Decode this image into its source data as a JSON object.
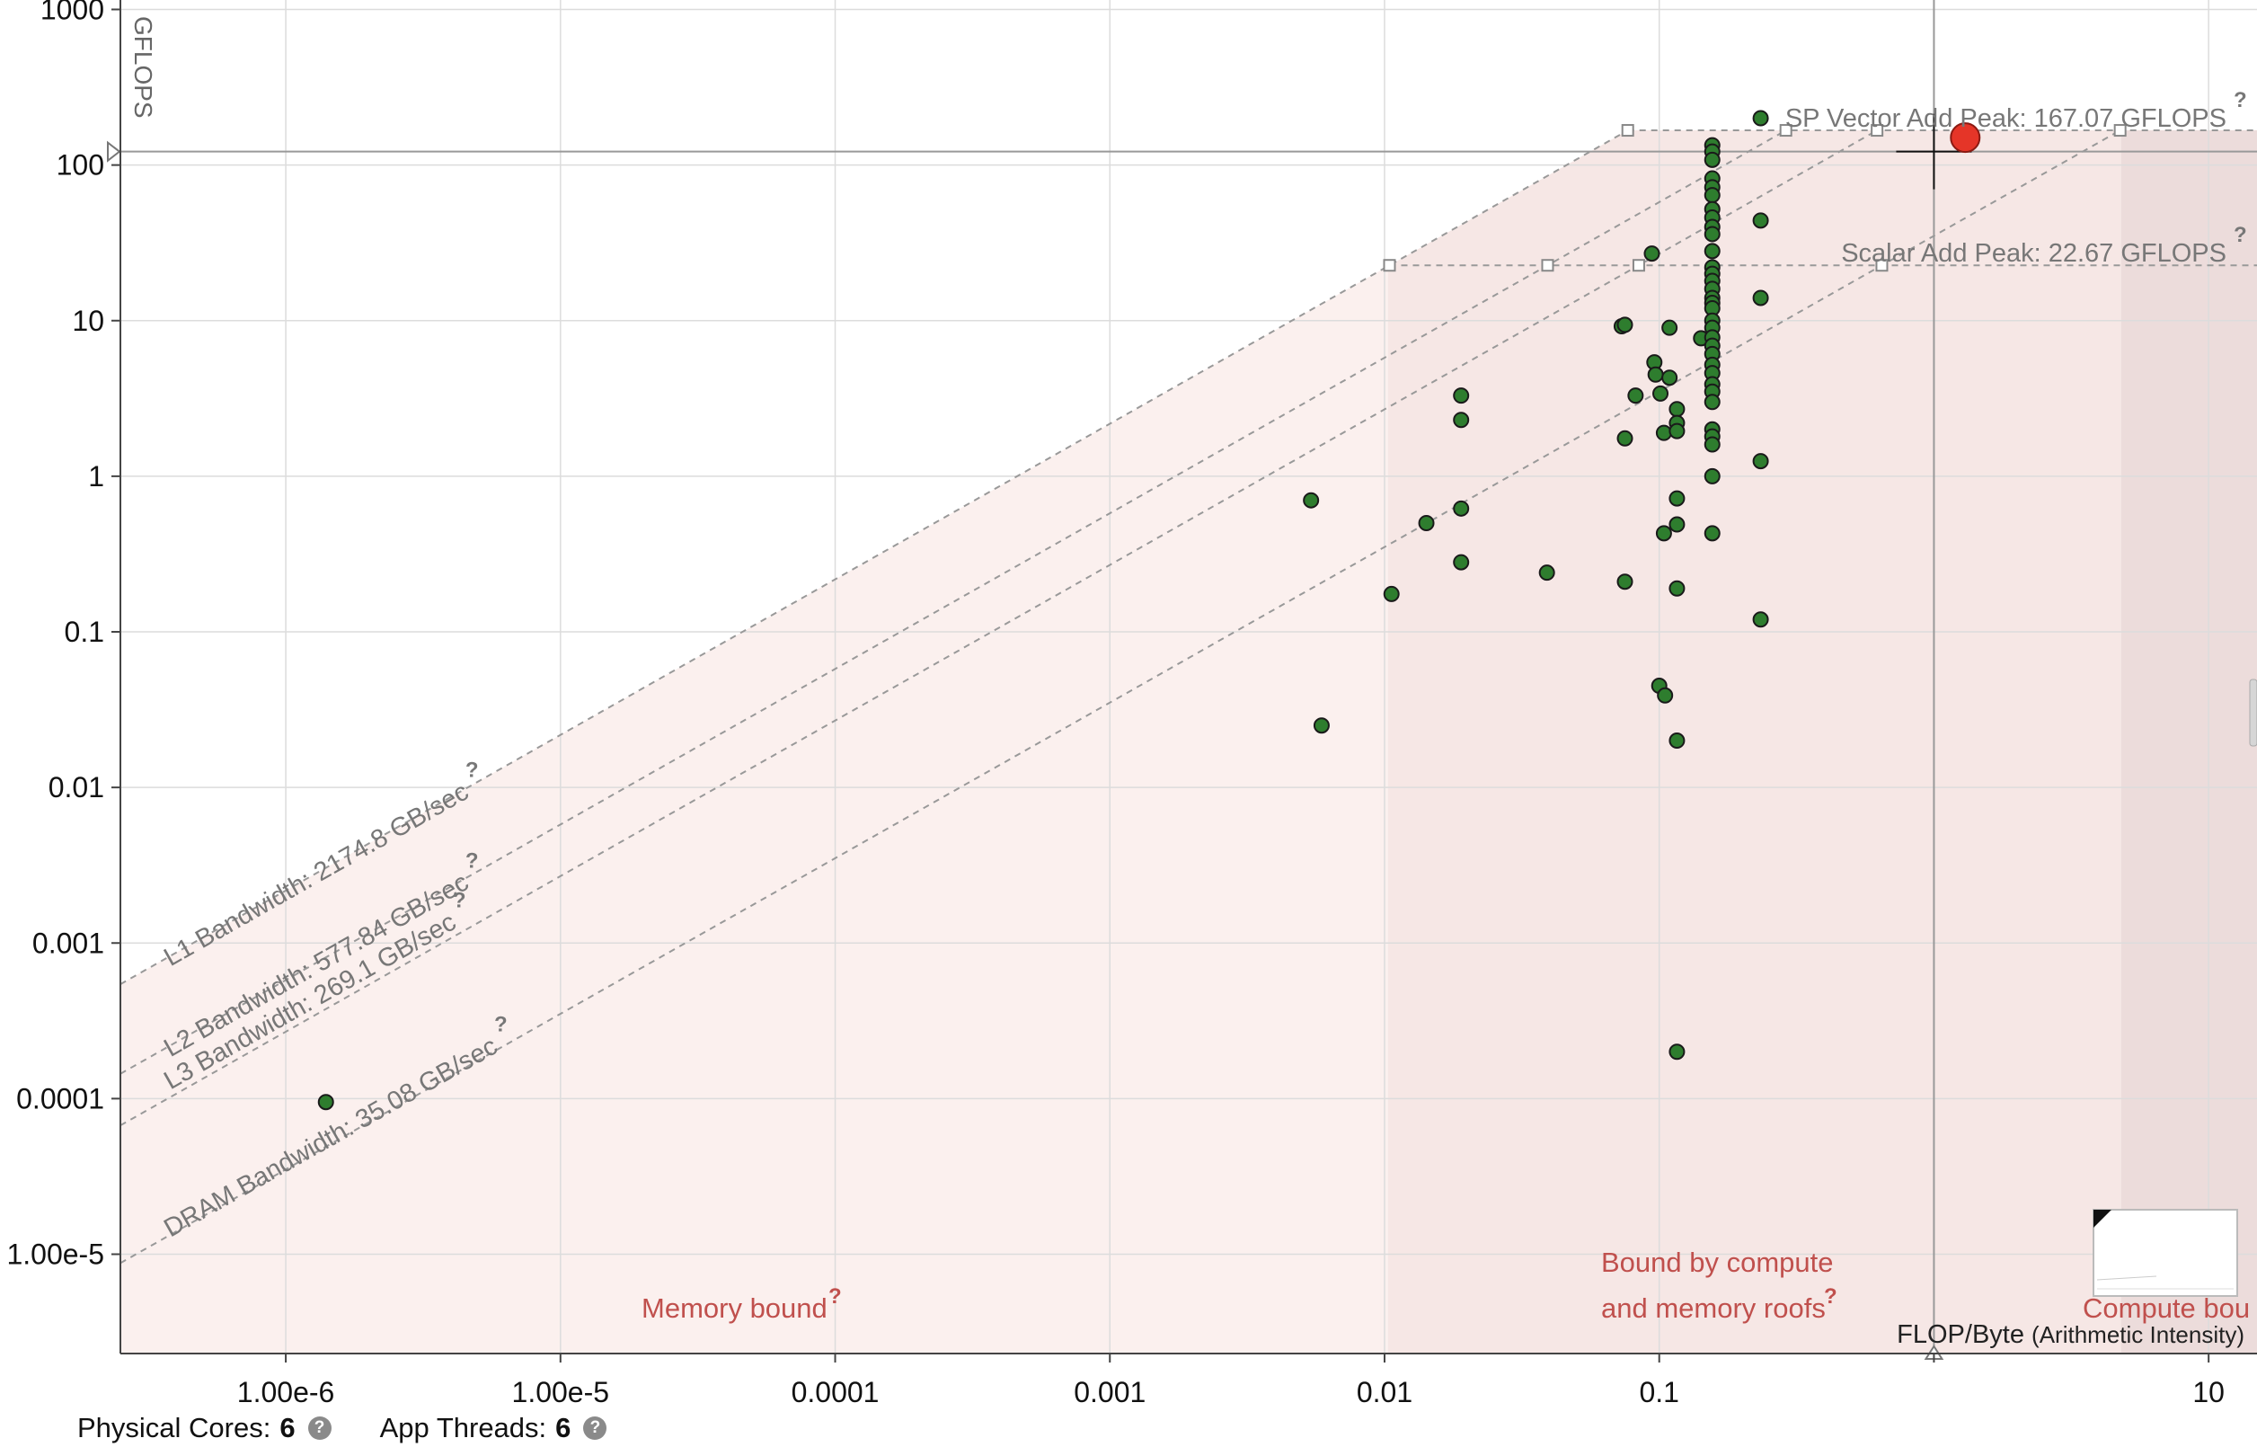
{
  "chart_data": {
    "type": "scatter",
    "xlabel": "FLOP/Byte",
    "xlabel_sub": "(Arithmetic Intensity)",
    "ylabel": "GFLOPS",
    "x_scale": "log",
    "y_scale": "log",
    "xlim": [
      2.5e-07,
      15
    ],
    "ylim": [
      2.3e-06,
      1150
    ],
    "grid": true,
    "x_ticks": [
      {
        "value": 1e-06,
        "label": "1.00e-6"
      },
      {
        "value": 1e-05,
        "label": "1.00e-5"
      },
      {
        "value": 0.0001,
        "label": "0.0001"
      },
      {
        "value": 0.001,
        "label": "0.001"
      },
      {
        "value": 0.01,
        "label": "0.01"
      },
      {
        "value": 0.1,
        "label": "0.1"
      },
      {
        "value": 1,
        "label": ""
      },
      {
        "value": 10,
        "label": "10"
      }
    ],
    "y_ticks": [
      {
        "value": 1e-05,
        "label": "1.00e-5"
      },
      {
        "value": 0.0001,
        "label": "0.0001"
      },
      {
        "value": 0.001,
        "label": "0.001"
      },
      {
        "value": 0.01,
        "label": "0.01"
      },
      {
        "value": 0.1,
        "label": "0.1"
      },
      {
        "value": 1,
        "label": "1"
      },
      {
        "value": 10,
        "label": "10"
      },
      {
        "value": 100,
        "label": "100"
      },
      {
        "value": 1000,
        "label": "1000"
      }
    ],
    "compute_roofs": [
      {
        "name": "SP Vector Add Peak: 167.07 GFLOPS",
        "gflops": 167.07,
        "help": "?"
      },
      {
        "name": "Scalar Add Peak: 22.67 GFLOPS",
        "gflops": 22.67,
        "help": "?"
      }
    ],
    "memory_roofs": [
      {
        "name": "L1 Bandwidth: 2174.8 GB/sec",
        "gbps": 2174.8,
        "help": "?"
      },
      {
        "name": "L2 Bandwidth: 577.84 GB/sec",
        "gbps": 577.84,
        "help": "?"
      },
      {
        "name": "L3 Bandwidth: 269.1 GB/sec",
        "gbps": 269.1,
        "help": "?"
      },
      {
        "name": "DRAM Bandwidth: 35.08 GB/sec",
        "gbps": 35.08,
        "help": "?"
      }
    ],
    "regions": [
      {
        "label": "Memory bound",
        "help": "?"
      },
      {
        "label": "Bound by compute and memory roofs",
        "line1": "Bound by compute",
        "line2": "and memory roofs",
        "help": "?"
      },
      {
        "label": "Compute bou"
      }
    ],
    "region_bounds": {
      "compute_and_memory_start": 0.0103,
      "compute_start": 4.8
    },
    "crosshair": {
      "x": 1.0,
      "y": 122
    },
    "selected_point": {
      "x": 1.3,
      "y": 150
    },
    "points": [
      [
        1.4e-06,
        9.5e-05
      ],
      [
        0.0054,
        0.7
      ],
      [
        0.0059,
        0.025
      ],
      [
        0.0106,
        0.175
      ],
      [
        0.0142,
        0.5
      ],
      [
        0.019,
        0.62
      ],
      [
        0.019,
        0.28
      ],
      [
        0.019,
        2.3
      ],
      [
        0.019,
        3.3
      ],
      [
        0.039,
        0.24
      ],
      [
        0.073,
        9.2
      ],
      [
        0.075,
        9.4
      ],
      [
        0.075,
        1.75
      ],
      [
        0.075,
        0.21
      ],
      [
        0.082,
        3.3
      ],
      [
        0.094,
        27
      ],
      [
        0.096,
        5.4
      ],
      [
        0.097,
        4.5
      ],
      [
        0.1,
        0.045
      ],
      [
        0.101,
        3.4
      ],
      [
        0.104,
        1.9
      ],
      [
        0.104,
        0.43
      ],
      [
        0.105,
        0.039
      ],
      [
        0.109,
        9
      ],
      [
        0.109,
        4.3
      ],
      [
        0.116,
        2.7
      ],
      [
        0.116,
        2.2
      ],
      [
        0.116,
        1.95
      ],
      [
        0.116,
        0.72
      ],
      [
        0.116,
        0.49
      ],
      [
        0.116,
        0.19
      ],
      [
        0.116,
        0.02
      ],
      [
        0.116,
        0.0002
      ],
      [
        0.142,
        7.7
      ],
      [
        0.156,
        134
      ],
      [
        0.156,
        122
      ],
      [
        0.156,
        108
      ],
      [
        0.156,
        82
      ],
      [
        0.156,
        72
      ],
      [
        0.156,
        64
      ],
      [
        0.156,
        52
      ],
      [
        0.156,
        46
      ],
      [
        0.156,
        40
      ],
      [
        0.156,
        36
      ],
      [
        0.156,
        28
      ],
      [
        0.156,
        22
      ],
      [
        0.156,
        20
      ],
      [
        0.156,
        18
      ],
      [
        0.156,
        16
      ],
      [
        0.156,
        14
      ],
      [
        0.156,
        13
      ],
      [
        0.156,
        12
      ],
      [
        0.156,
        10
      ],
      [
        0.156,
        9
      ],
      [
        0.156,
        7.8
      ],
      [
        0.156,
        6.9
      ],
      [
        0.156,
        6.1
      ],
      [
        0.156,
        5.2
      ],
      [
        0.156,
        4.6
      ],
      [
        0.156,
        3.9
      ],
      [
        0.156,
        3.5
      ],
      [
        0.156,
        3.0
      ],
      [
        0.156,
        2.0
      ],
      [
        0.156,
        1.8
      ],
      [
        0.156,
        1.6
      ],
      [
        0.156,
        1.0
      ],
      [
        0.156,
        0.43
      ],
      [
        0.234,
        200
      ],
      [
        0.234,
        44
      ],
      [
        0.234,
        14
      ],
      [
        0.234,
        1.25
      ],
      [
        0.234,
        0.12
      ]
    ]
  },
  "footer": {
    "physical_cores_label": "Physical Cores:",
    "physical_cores_value": "6",
    "app_threads_label": "App Threads:",
    "app_threads_value": "6",
    "help_glyph": "?"
  }
}
